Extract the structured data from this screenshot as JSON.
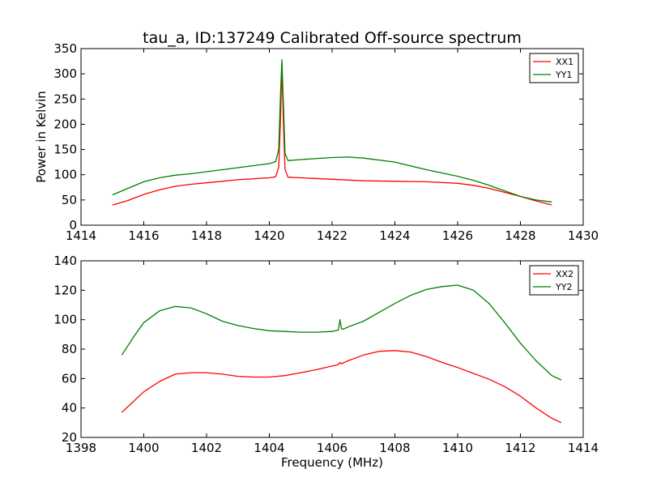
{
  "chart_data": [
    {
      "type": "line",
      "title": "tau_a, ID:137249 Calibrated Off-source spectrum",
      "xlabel": "",
      "ylabel": "Power in Kelvin",
      "xlim": [
        1414,
        1430
      ],
      "ylim": [
        0,
        350
      ],
      "xticks": [
        "1414",
        "1416",
        "1418",
        "1420",
        "1422",
        "1424",
        "1426",
        "1428",
        "1430"
      ],
      "yticks": [
        "0",
        "50",
        "100",
        "150",
        "200",
        "250",
        "300",
        "350"
      ],
      "grid": false,
      "legend_position": "top-right",
      "series": [
        {
          "name": "XX1",
          "color": "#ff0000",
          "x": [
            1415.0,
            1415.5,
            1416.0,
            1416.5,
            1417.0,
            1417.5,
            1418.0,
            1418.5,
            1419.0,
            1419.5,
            1420.0,
            1420.2,
            1420.3,
            1420.35,
            1420.4,
            1420.45,
            1420.5,
            1420.6,
            1421.0,
            1422.0,
            1423.0,
            1424.0,
            1425.0,
            1426.0,
            1426.5,
            1427.0,
            1427.5,
            1428.0,
            1428.5,
            1429.0
          ],
          "y": [
            40,
            49,
            61,
            70,
            77,
            81,
            84,
            87,
            90,
            92,
            94,
            96,
            115,
            200,
            313,
            200,
            110,
            95,
            94,
            91,
            88,
            87,
            86,
            83,
            79,
            73,
            65,
            57,
            48,
            40
          ]
        },
        {
          "name": "YY1",
          "color": "#008000",
          "x": [
            1415.0,
            1415.5,
            1416.0,
            1416.5,
            1417.0,
            1417.5,
            1418.0,
            1418.5,
            1419.0,
            1419.5,
            1420.0,
            1420.2,
            1420.3,
            1420.35,
            1420.4,
            1420.45,
            1420.5,
            1420.6,
            1421.0,
            1422.0,
            1422.5,
            1423.0,
            1424.0,
            1425.0,
            1426.0,
            1426.5,
            1427.0,
            1427.5,
            1428.0,
            1428.5,
            1429.0
          ],
          "y": [
            60,
            73,
            86,
            94,
            99,
            102,
            106,
            110,
            114,
            118,
            122,
            126,
            150,
            250,
            328,
            240,
            142,
            128,
            130,
            134,
            135,
            133,
            125,
            110,
            97,
            89,
            79,
            68,
            57,
            50,
            46
          ]
        }
      ]
    },
    {
      "type": "line",
      "title": "",
      "xlabel": "Frequency (MHz)",
      "ylabel": "",
      "xlim": [
        1398,
        1414
      ],
      "ylim": [
        20,
        140
      ],
      "xticks": [
        "1398",
        "1400",
        "1402",
        "1404",
        "1406",
        "1408",
        "1410",
        "1412",
        "1414"
      ],
      "yticks": [
        "20",
        "40",
        "60",
        "80",
        "100",
        "120",
        "140"
      ],
      "grid": false,
      "legend_position": "top-right",
      "series": [
        {
          "name": "XX2",
          "color": "#ff0000",
          "x": [
            1399.3,
            1399.7,
            1400.0,
            1400.5,
            1401.0,
            1401.5,
            1402.0,
            1402.5,
            1403.0,
            1403.5,
            1404.0,
            1404.5,
            1405.0,
            1405.5,
            1406.0,
            1406.2,
            1406.25,
            1406.3,
            1406.5,
            1407.0,
            1407.5,
            1408.0,
            1408.5,
            1409.0,
            1409.5,
            1410.0,
            1410.5,
            1411.0,
            1411.5,
            1412.0,
            1412.5,
            1413.0,
            1413.3
          ],
          "y": [
            37,
            45,
            51,
            58,
            63,
            64,
            64,
            63,
            61.5,
            61,
            61,
            62,
            64,
            66,
            68.5,
            69.5,
            71,
            70,
            72,
            76,
            78.5,
            79,
            78,
            75,
            71,
            67.5,
            63.5,
            59.5,
            54.5,
            48,
            40,
            33,
            30
          ]
        },
        {
          "name": "YY2",
          "color": "#008000",
          "x": [
            1399.3,
            1399.7,
            1400.0,
            1400.5,
            1401.0,
            1401.5,
            1402.0,
            1402.5,
            1403.0,
            1403.5,
            1404.0,
            1404.5,
            1405.0,
            1405.5,
            1406.0,
            1406.2,
            1406.25,
            1406.3,
            1406.35,
            1406.5,
            1407.0,
            1407.5,
            1408.0,
            1408.5,
            1409.0,
            1409.5,
            1410.0,
            1410.5,
            1411.0,
            1411.5,
            1412.0,
            1412.5,
            1413.0,
            1413.3
          ],
          "y": [
            76,
            89,
            98,
            106,
            109,
            108,
            104,
            99,
            96,
            94,
            92.5,
            92,
            91.5,
            91.5,
            92,
            93,
            100,
            94,
            93.5,
            95,
            99,
            105,
            111,
            116.5,
            120.5,
            122.5,
            123.5,
            120,
            111,
            98,
            84,
            72,
            62,
            59
          ]
        }
      ]
    }
  ]
}
